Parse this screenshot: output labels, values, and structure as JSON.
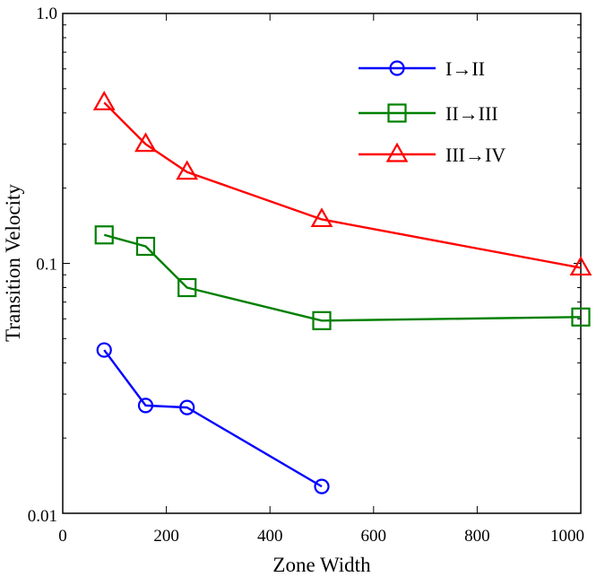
{
  "chart_data": {
    "type": "line",
    "title": "",
    "xlabel": "Zone Width",
    "ylabel": "Transition Velocity",
    "xscale": "linear",
    "yscale": "log",
    "xlim": [
      0,
      1000
    ],
    "ylim": [
      0.01,
      1.0
    ],
    "xticks": [
      0,
      200,
      400,
      600,
      800,
      1000
    ],
    "xtick_labels": [
      "0",
      "200",
      "400",
      "600",
      "800",
      "1000"
    ],
    "yticks": [
      0.01,
      0.1,
      1.0
    ],
    "ytick_labels": [
      "0.01",
      "0.1",
      "1.0"
    ],
    "grid": false,
    "legend_position": "top-right",
    "series": [
      {
        "name": "I→II",
        "color": "#0000ff",
        "marker": "circle",
        "x": [
          80,
          160,
          240,
          500
        ],
        "y": [
          0.045,
          0.027,
          0.0265,
          0.0128
        ]
      },
      {
        "name": "II→III",
        "color": "#008000",
        "marker": "square",
        "x": [
          80,
          160,
          240,
          500,
          1000
        ],
        "y": [
          0.13,
          0.117,
          0.08,
          0.059,
          0.061
        ]
      },
      {
        "name": "III→IV",
        "color": "#ff0000",
        "marker": "triangle",
        "x": [
          80,
          160,
          240,
          500,
          1000
        ],
        "y": [
          0.44,
          0.3,
          0.232,
          0.15,
          0.096
        ]
      }
    ]
  }
}
